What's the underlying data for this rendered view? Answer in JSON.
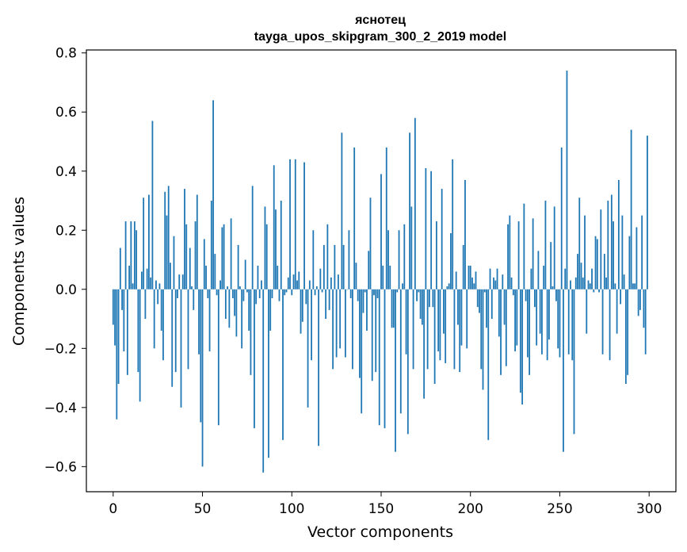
{
  "chart_data": {
    "type": "bar",
    "title": "яснотец",
    "subtitle": "tayga_upos_skipgram_300_2_2019 model",
    "xlabel": "Vector components",
    "ylabel": "Components values",
    "xlim": [
      -15,
      315
    ],
    "ylim": [
      -0.685,
      0.81
    ],
    "xticks": [
      0,
      50,
      100,
      150,
      200,
      250,
      300
    ],
    "xtick_labels": [
      "0",
      "50",
      "100",
      "150",
      "200",
      "250",
      "300"
    ],
    "yticks": [
      -0.6,
      -0.4,
      -0.2,
      0.0,
      0.2,
      0.4,
      0.6,
      0.8
    ],
    "ytick_labels": [
      "−0.6",
      "−0.4",
      "−0.2",
      "0.0",
      "0.2",
      "0.4",
      "0.6",
      "0.8"
    ],
    "grid": false,
    "bar_color": "#1f77b4",
    "x_start": 0,
    "values": [
      -0.12,
      -0.19,
      -0.44,
      -0.32,
      0.14,
      -0.07,
      -0.21,
      0.23,
      -0.29,
      0.08,
      0.23,
      0.02,
      0.23,
      0.2,
      -0.28,
      -0.38,
      0.06,
      0.31,
      -0.1,
      0.07,
      0.32,
      0.04,
      0.57,
      -0.2,
      0.03,
      -0.05,
      0.02,
      -0.14,
      -0.24,
      0.33,
      0.25,
      0.35,
      0.09,
      -0.33,
      0.18,
      -0.28,
      -0.03,
      0.05,
      -0.4,
      0.05,
      0.34,
      0.22,
      -0.27,
      0.14,
      0.01,
      -0.07,
      0.23,
      0.32,
      -0.22,
      -0.45,
      -0.6,
      0.17,
      0.08,
      -0.03,
      -0.21,
      0.3,
      0.64,
      0.12,
      -0.02,
      -0.46,
      0.03,
      0.21,
      0.22,
      -0.1,
      0.01,
      -0.13,
      0.24,
      -0.03,
      -0.09,
      -0.16,
      0.15,
      0.01,
      -0.2,
      -0.04,
      0.1,
      -0.01,
      -0.14,
      -0.29,
      0.35,
      -0.47,
      -0.05,
      0.08,
      -0.03,
      0.03,
      -0.62,
      0.28,
      0.22,
      -0.57,
      -0.14,
      -0.03,
      0.42,
      0.27,
      0.08,
      -0.04,
      0.3,
      -0.51,
      -0.02,
      -0.01,
      0.04,
      0.44,
      -0.02,
      0.05,
      0.44,
      0.03,
      0.06,
      -0.15,
      -0.11,
      0.43,
      -0.05,
      -0.4,
      0.03,
      -0.24,
      0.2,
      -0.02,
      0.01,
      -0.53,
      0.07,
      -0.01,
      0.15,
      -0.1,
      0.22,
      -0.07,
      0.04,
      -0.27,
      0.15,
      -0.23,
      0.05,
      -0.2,
      0.53,
      0.15,
      -0.23,
      0.0,
      0.2,
      -0.03,
      -0.27,
      0.48,
      0.09,
      -0.04,
      -0.3,
      -0.42,
      -0.08,
      -0.01,
      -0.14,
      0.13,
      0.31,
      -0.31,
      -0.02,
      -0.28,
      -0.03,
      -0.46,
      0.39,
      0.08,
      -0.47,
      0.48,
      0.2,
      0.08,
      -0.13,
      -0.13,
      -0.55,
      -0.01,
      0.2,
      -0.42,
      0.02,
      0.22,
      -0.22,
      -0.49,
      0.53,
      0.28,
      -0.27,
      0.58,
      -0.04,
      -0.01,
      -0.1,
      -0.12,
      -0.37,
      0.41,
      -0.27,
      -0.06,
      0.4,
      -0.06,
      -0.32,
      0.23,
      -0.21,
      -0.24,
      0.34,
      -0.15,
      -0.25,
      0.01,
      0.02,
      0.19,
      0.44,
      -0.27,
      0.06,
      -0.12,
      -0.28,
      -0.19,
      0.15,
      0.37,
      -0.2,
      0.08,
      0.08,
      0.04,
      0.02,
      0.06,
      -0.06,
      -0.08,
      -0.27,
      -0.34,
      -0.01,
      -0.13,
      -0.51,
      0.07,
      -0.1,
      0.04,
      0.03,
      0.07,
      -0.16,
      -0.29,
      0.05,
      -0.12,
      -0.26,
      0.22,
      0.25,
      0.04,
      -0.02,
      -0.21,
      -0.19,
      0.23,
      -0.35,
      -0.39,
      0.29,
      -0.04,
      -0.23,
      -0.29,
      0.07,
      0.24,
      -0.06,
      -0.19,
      0.13,
      -0.15,
      -0.22,
      0.08,
      0.3,
      -0.24,
      -0.17,
      0.16,
      0.01,
      0.28,
      -0.04,
      -0.2,
      -0.23,
      0.48,
      -0.55,
      0.07,
      0.74,
      -0.22,
      0.03,
      -0.24,
      -0.49,
      0.04,
      0.12,
      0.31,
      0.09,
      0.04,
      0.25,
      -0.15,
      0.03,
      0.02,
      0.07,
      -0.01,
      0.18,
      0.17,
      -0.01,
      0.27,
      -0.22,
      0.12,
      0.04,
      0.3,
      -0.24,
      0.32,
      0.23,
      0.02,
      -0.15,
      0.37,
      -0.05,
      0.25,
      0.05,
      -0.32,
      -0.29,
      0.18,
      0.54,
      0.02,
      0.02,
      0.21,
      -0.09,
      -0.07,
      0.25,
      -0.13,
      -0.22,
      0.52
    ]
  }
}
